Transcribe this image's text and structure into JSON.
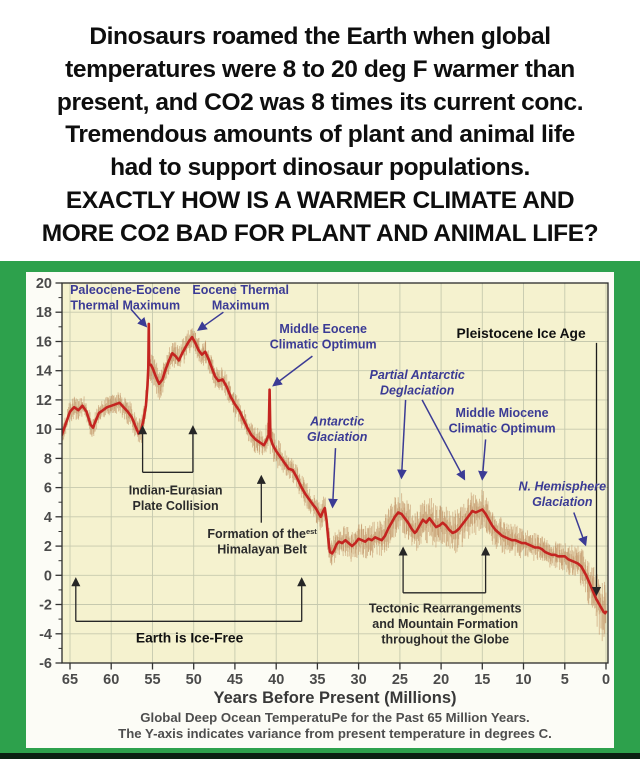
{
  "meme": {
    "lines": [
      "Dinosaurs roamed the Earth when global",
      "temperatures were 8 to 20 deg F warmer than",
      "present, and CO2 was 8 times its current conc.",
      "Tremendous amounts of plant and animal life",
      "had to support dinosaur populations.",
      "EXACTLY HOW IS A WARMER CLIMATE AND",
      "MORE CO2 BAD FOR PLANT AND ANIMAL LIFE?"
    ]
  },
  "chart_data": {
    "type": "line",
    "title": "Global Deep Ocean TemperatuPe for the Past 65 Million Years.",
    "subtitle": "The Y-axis indicates variance from present temperature in degrees C.",
    "xlabel": "Years Before Present (Millions)",
    "ylabel": "",
    "x_axis_reversed": true,
    "x_range": [
      66,
      0
    ],
    "y_range": [
      -6,
      20
    ],
    "x_ticks": [
      65,
      60,
      55,
      50,
      45,
      40,
      35,
      30,
      25,
      20,
      15,
      10,
      5,
      0
    ],
    "y_ticks": [
      20,
      18,
      16,
      14,
      12,
      10,
      8,
      6,
      4,
      2,
      0,
      -2,
      -4,
      -6
    ],
    "grid": true,
    "colors": {
      "frame_green": "#2da14c",
      "plot_background": "#f5f2cf",
      "grid": "#c6c9ae",
      "curve_red": "#c42420",
      "noise_tan": "rgba(187,138,92,0.55)",
      "annotation_blue": "#3b3b95",
      "annotation_black": "#2b2b2b",
      "caption_gray": "#4e4e4e"
    },
    "series": [
      {
        "name": "Global deep ocean temperature variance (deg C)",
        "color": "#c42420",
        "points": [
          [
            66,
            9.6
          ],
          [
            65.5,
            10.4
          ],
          [
            65,
            11.2
          ],
          [
            64.5,
            11.5
          ],
          [
            64,
            11.3
          ],
          [
            63.5,
            11.6
          ],
          [
            63,
            11.2
          ],
          [
            62.5,
            10.3
          ],
          [
            62.2,
            10.1
          ],
          [
            62,
            10.4
          ],
          [
            61.5,
            11.1
          ],
          [
            61,
            11.3
          ],
          [
            60.5,
            11.5
          ],
          [
            60,
            11.6
          ],
          [
            59.5,
            11.7
          ],
          [
            59,
            11.8
          ],
          [
            58.5,
            11.5
          ],
          [
            58,
            11.2
          ],
          [
            57.5,
            10.8
          ],
          [
            57,
            10.1
          ],
          [
            56.7,
            9.7
          ],
          [
            56.4,
            9.9
          ],
          [
            56.1,
            10.6
          ],
          [
            55.8,
            11.6
          ],
          [
            55.6,
            13.0
          ],
          [
            55.5,
            14.2
          ],
          [
            55.45,
            17.2
          ],
          [
            55.4,
            14.4
          ],
          [
            55.2,
            14.4
          ],
          [
            55,
            14.2
          ],
          [
            54.6,
            13.6
          ],
          [
            54.2,
            13.1
          ],
          [
            53.8,
            13.4
          ],
          [
            53.4,
            14.1
          ],
          [
            53,
            14.7
          ],
          [
            52.6,
            15.2
          ],
          [
            52.2,
            15.0
          ],
          [
            51.8,
            14.7
          ],
          [
            51.4,
            15.2
          ],
          [
            51,
            15.6
          ],
          [
            50.6,
            16.0
          ],
          [
            50.2,
            16.3
          ],
          [
            49.8,
            15.9
          ],
          [
            49.4,
            15.4
          ],
          [
            49,
            15.1
          ],
          [
            48.6,
            15.3
          ],
          [
            48.2,
            14.8
          ],
          [
            47.8,
            14.2
          ],
          [
            47.4,
            13.6
          ],
          [
            47,
            13.3
          ],
          [
            46.5,
            13.4
          ],
          [
            46,
            12.9
          ],
          [
            45.5,
            12.2
          ],
          [
            45,
            11.7
          ],
          [
            44.5,
            11.3
          ],
          [
            44,
            10.7
          ],
          [
            43.5,
            10.1
          ],
          [
            43,
            9.6
          ],
          [
            42.5,
            9.3
          ],
          [
            42,
            9.1
          ],
          [
            41.5,
            8.9
          ],
          [
            41.2,
            9.2
          ],
          [
            40.9,
            9.6
          ],
          [
            40.8,
            12.7
          ],
          [
            40.7,
            9.4
          ],
          [
            40.4,
            8.9
          ],
          [
            40,
            8.5
          ],
          [
            39.5,
            8.1
          ],
          [
            39,
            7.7
          ],
          [
            38.5,
            7.3
          ],
          [
            38,
            7.2
          ],
          [
            37.5,
            6.7
          ],
          [
            37,
            6.1
          ],
          [
            36.5,
            5.6
          ],
          [
            36,
            5.2
          ],
          [
            35.5,
            4.8
          ],
          [
            35.2,
            4.6
          ],
          [
            34.9,
            4.3
          ],
          [
            34.6,
            4.0
          ],
          [
            34.3,
            4.4
          ],
          [
            34.1,
            4.6
          ],
          [
            33.9,
            3.8
          ],
          [
            33.7,
            2.6
          ],
          [
            33.5,
            1.6
          ],
          [
            33.2,
            1.5
          ],
          [
            33,
            1.7
          ],
          [
            32.7,
            2.1
          ],
          [
            32.4,
            2.3
          ],
          [
            32,
            2.2
          ],
          [
            31.6,
            2.4
          ],
          [
            31.2,
            2.2
          ],
          [
            30.8,
            2.0
          ],
          [
            30.4,
            2.2
          ],
          [
            30,
            2.5
          ],
          [
            29.6,
            2.4
          ],
          [
            29.2,
            2.3
          ],
          [
            28.8,
            2.5
          ],
          [
            28.4,
            2.4
          ],
          [
            28,
            2.6
          ],
          [
            27.6,
            2.5
          ],
          [
            27.2,
            2.4
          ],
          [
            26.8,
            2.7
          ],
          [
            26.4,
            3.2
          ],
          [
            26,
            3.6
          ],
          [
            25.6,
            4.0
          ],
          [
            25.2,
            4.3
          ],
          [
            24.8,
            4.2
          ],
          [
            24.4,
            3.9
          ],
          [
            24,
            3.6
          ],
          [
            23.6,
            3.2
          ],
          [
            23.2,
            2.9
          ],
          [
            23,
            3.0
          ],
          [
            22.6,
            3.4
          ],
          [
            22.2,
            3.8
          ],
          [
            21.8,
            3.6
          ],
          [
            21.4,
            3.9
          ],
          [
            21,
            3.6
          ],
          [
            20.6,
            3.3
          ],
          [
            20.2,
            3.4
          ],
          [
            19.8,
            3.6
          ],
          [
            19.4,
            3.4
          ],
          [
            19,
            3.1
          ],
          [
            18.6,
            2.9
          ],
          [
            18.2,
            3.0
          ],
          [
            17.8,
            3.2
          ],
          [
            17.4,
            3.5
          ],
          [
            17,
            3.8
          ],
          [
            16.6,
            4.1
          ],
          [
            16.2,
            4.4
          ],
          [
            15.8,
            4.3
          ],
          [
            15.4,
            4.4
          ],
          [
            15,
            4.5
          ],
          [
            14.6,
            4.2
          ],
          [
            14.2,
            3.8
          ],
          [
            13.8,
            3.4
          ],
          [
            13.4,
            3.1
          ],
          [
            13,
            2.9
          ],
          [
            12.6,
            2.7
          ],
          [
            12.2,
            2.6
          ],
          [
            11.8,
            2.5
          ],
          [
            11.4,
            2.4
          ],
          [
            11,
            2.4
          ],
          [
            10.6,
            2.3
          ],
          [
            10.2,
            2.2
          ],
          [
            9.8,
            2.2
          ],
          [
            9.4,
            2.1
          ],
          [
            9,
            2.0
          ],
          [
            8.6,
            1.9
          ],
          [
            8.2,
            1.9
          ],
          [
            7.8,
            1.8
          ],
          [
            7.4,
            1.6
          ],
          [
            7,
            1.5
          ],
          [
            6.6,
            1.4
          ],
          [
            6.2,
            1.4
          ],
          [
            5.8,
            1.3
          ],
          [
            5.4,
            1.3
          ],
          [
            5,
            1.3
          ],
          [
            4.6,
            1.1
          ],
          [
            4.2,
            1.0
          ],
          [
            3.8,
            0.9
          ],
          [
            3.4,
            0.8
          ],
          [
            3,
            0.6
          ],
          [
            2.7,
            0.3
          ],
          [
            2.4,
            0.0
          ],
          [
            2.1,
            -0.4
          ],
          [
            1.8,
            -0.8
          ],
          [
            1.5,
            -1.2
          ],
          [
            1.2,
            -1.6
          ],
          [
            0.9,
            -1.9
          ],
          [
            0.6,
            -2.2
          ],
          [
            0.3,
            -2.5
          ],
          [
            0.1,
            -2.6
          ],
          [
            0,
            -2.5
          ]
        ]
      }
    ],
    "noise_band": {
      "color": "rgba(187,138,92,0.55)",
      "amplitude_keypoints": [
        [
          66,
          0.75
        ],
        [
          60,
          0.7
        ],
        [
          56,
          1.0
        ],
        [
          55,
          1.1
        ],
        [
          52,
          0.9
        ],
        [
          48,
          0.8
        ],
        [
          44,
          0.8
        ],
        [
          41,
          1.1
        ],
        [
          38,
          0.8
        ],
        [
          35,
          0.9
        ],
        [
          33.5,
          1.1
        ],
        [
          31,
          1.1
        ],
        [
          28,
          1.2
        ],
        [
          25,
          1.4
        ],
        [
          22,
          1.5
        ],
        [
          19,
          1.4
        ],
        [
          16,
          1.5
        ],
        [
          13,
          1.2
        ],
        [
          10,
          1.0
        ],
        [
          7,
          0.9
        ],
        [
          5,
          1.0
        ],
        [
          3,
          1.3
        ],
        [
          1.5,
          1.8
        ],
        [
          0.5,
          2.1
        ],
        [
          0,
          2.2
        ]
      ]
    },
    "annotations": [
      {
        "lines": [
          "Paleocene-Eocene",
          "Thermal Maximum"
        ],
        "style": "blue",
        "at": [
          58.3,
          19.55
        ],
        "arrows": [
          [
            57.6,
            18.2,
            55.8,
            17.05
          ]
        ]
      },
      {
        "lines": [
          "Eocene Thermal",
          "Maximum"
        ],
        "style": "blue",
        "at": [
          44.3,
          19.55
        ],
        "arrows": [
          [
            46.4,
            18.0,
            49.4,
            16.8
          ]
        ]
      },
      {
        "lines": [
          "Middle Eocene",
          "Climatic Optimum"
        ],
        "style": "blue",
        "at": [
          34.3,
          16.9
        ],
        "arrows": [
          [
            35.6,
            15.0,
            40.3,
            13.0
          ]
        ]
      },
      {
        "lines": [
          "Pleistocene Ice Age"
        ],
        "style": "black-bold",
        "at": [
          10.3,
          16.55
        ],
        "vline": {
          "x": 1.15,
          "top": 15.9,
          "bottom": -1.3
        }
      },
      {
        "lines": [
          "Partial Antarctic",
          "Deglaciation"
        ],
        "style": "blue-italic",
        "at": [
          22.9,
          13.75
        ],
        "arrows": [
          [
            24.3,
            12.0,
            24.8,
            6.7
          ],
          [
            22.3,
            12.0,
            17.2,
            6.6
          ]
        ]
      },
      {
        "lines": [
          "Middle Miocene",
          "Climatic Optimum"
        ],
        "style": "blue",
        "at": [
          12.6,
          11.15
        ],
        "arrows": [
          [
            14.6,
            9.3,
            15.0,
            6.6
          ]
        ]
      },
      {
        "lines": [
          "Antarctic",
          "Glaciation"
        ],
        "style": "blue-italic",
        "at": [
          32.6,
          10.55
        ],
        "arrows": [
          [
            32.8,
            8.7,
            33.15,
            4.7
          ]
        ]
      },
      {
        "lines": [
          "N. Hemisphere",
          "Glaciation"
        ],
        "style": "blue-italic",
        "at": [
          5.3,
          6.1
        ],
        "arrows": [
          [
            3.9,
            4.3,
            2.5,
            2.1
          ]
        ]
      },
      {
        "lines": [
          "Indian-Eurasian",
          "Plate Collision"
        ],
        "style": "black",
        "at": [
          52.2,
          5.85
        ],
        "bracket": {
          "x1": 56.2,
          "x2": 50.1,
          "bar": 7.05,
          "tip": 10.15
        }
      },
      {
        "lines": [
          "Formation of the",
          "Himalayan Belt"
        ],
        "sup": "est",
        "style": "black",
        "at": [
          41.7,
          2.85
        ],
        "arrows": [
          [
            41.8,
            3.6,
            41.8,
            6.75
          ]
        ]
      },
      {
        "lines": [
          "Earth is Ice-Free"
        ],
        "style": "black-bold",
        "at": [
          50.5,
          -4.3
        ],
        "bracket": {
          "x1": 64.3,
          "x2": 36.9,
          "bar": -3.15,
          "tip": -0.25
        }
      },
      {
        "lines": [
          "Tectonic Rearrangements",
          "and Mountain Formation",
          "throughout the Globe"
        ],
        "style": "black",
        "at": [
          19.5,
          -2.25
        ],
        "bracket": {
          "x1": 24.6,
          "x2": 14.6,
          "bar": -1.2,
          "tip": 1.85
        }
      }
    ]
  }
}
